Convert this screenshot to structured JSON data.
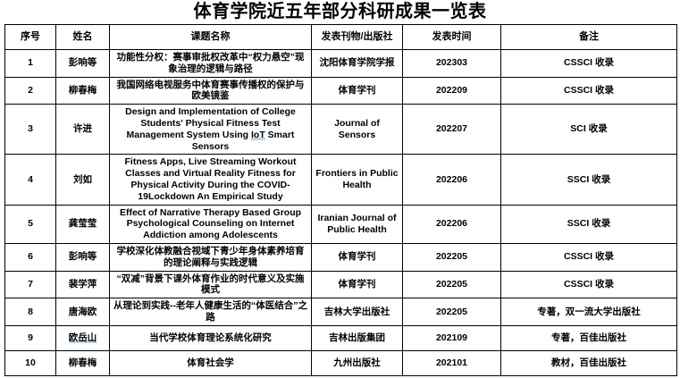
{
  "title": "体育学院近五年部分科研成果一览表",
  "colors": {
    "highlight": "#b9d4ee",
    "text": "#000000",
    "border": "#000000",
    "background": "#ffffff"
  },
  "table": {
    "headers": [
      "序号",
      "姓名",
      "课题名称",
      "发表刊物/出版社",
      "发表时间",
      "备注"
    ],
    "rows": [
      {
        "no": "1",
        "name": "彭响等",
        "topic": "功能性分权：赛事审批权改革中“权力悬空”现象治理的逻辑与路径",
        "journal": "沈阳体育学院学报",
        "date": "202303",
        "note": "CSSCI 收录"
      },
      {
        "no": "2",
        "name": "柳春梅",
        "topic": "我国网络电视服务中体育赛事传播权的保护与欧美镜鉴",
        "journal": "体育学刊",
        "date": "202209",
        "note": "CSSCI 收录"
      },
      {
        "no": "3",
        "name": "许进",
        "topic_pre": "Design and Implementation of College Students' Physical Fitness Test Management System Using ",
        "topic_hl": "IoT",
        "topic_post": " Smart Sensors",
        "journal": "Journal of Sensors",
        "date": "202207",
        "note": "SCI 收录"
      },
      {
        "no": "4",
        "name": "刘如",
        "topic": "Fitness Apps, Live Streaming Workout Classes and Virtual Reality Fitness for Physical Activity During the COVID-19Lockdown An Empirical Study",
        "journal": "Frontiers in Public Health",
        "date": "202206",
        "note": "SSCI 收录"
      },
      {
        "no": "5",
        "name": "龚莹莹",
        "topic": "Effect of Narrative Therapy Based Group Psychological Counseling on Internet Addiction among Adolescents",
        "journal": "Iranian Journal of Public Health",
        "date": "202206",
        "note": "SSCI 收录"
      },
      {
        "no": "6",
        "name": "彭响等",
        "topic": "学校深化体教融合视域下青少年身体素养培育的理论阐释与实践逻辑",
        "journal": "体育学刊",
        "date": "202205",
        "note": "CSSCI 收录"
      },
      {
        "no": "7",
        "name": "裴学萍",
        "topic": "“双减”背景下课外体育作业的时代意义及实施模式",
        "journal": "体育学刊",
        "date": "202205",
        "note": "CSSCI 收录"
      },
      {
        "no": "8",
        "name": "唐海欧",
        "topic": "从理论到实践--老年人健康生活的“体医结合”之路",
        "journal": "吉林大学出版社",
        "date": "202205",
        "note": "专著，双一流大学出版社"
      },
      {
        "no": "9",
        "name": "欧岳山",
        "name_highlighted": true,
        "topic": "当代学校体育理论系统化研究",
        "journal": "吉林出版集团",
        "date": "202109",
        "note": "专著，百佳出版社"
      },
      {
        "no": "10",
        "name": "柳春梅",
        "topic": "体育社会学",
        "journal": "九州出版社",
        "date": "202101",
        "note": "教材，百佳出版社"
      }
    ]
  }
}
